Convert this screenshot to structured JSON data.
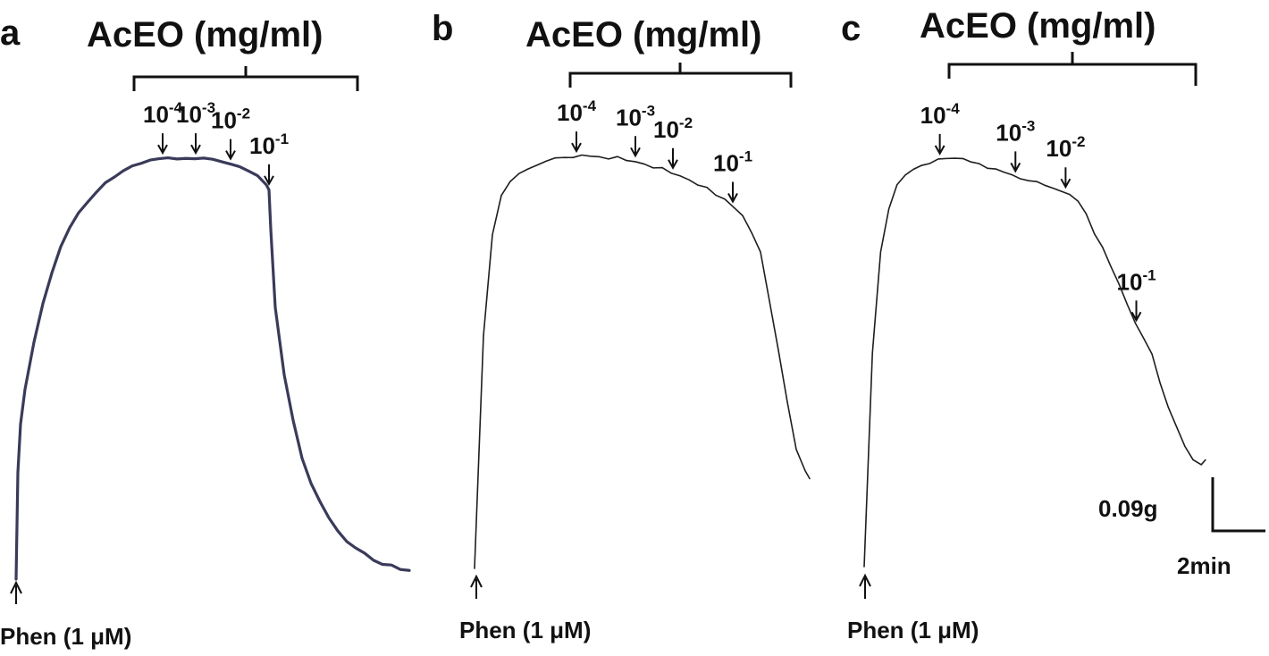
{
  "figure": {
    "scale_bar": {
      "force_label": "0.09g",
      "time_label": "2min"
    }
  },
  "chart_data": [
    {
      "type": "line",
      "panel": "a",
      "title": "AcEO (mg/ml)",
      "stimulus_label": "Phen (1 μM)",
      "concentrations": [
        {
          "base": "10",
          "exp": "-4",
          "t": 16.4
        },
        {
          "base": "10",
          "exp": "-3",
          "t": 20.1
        },
        {
          "base": "10",
          "exp": "-2",
          "t": 24.0
        },
        {
          "base": "10",
          "exp": "-1",
          "t": 28.3
        }
      ],
      "series": [
        {
          "x": [
            0,
            0.2,
            0.5,
            1,
            2,
            3,
            4,
            5,
            6,
            7,
            8,
            9,
            10,
            11,
            12,
            13,
            14,
            15,
            16,
            17,
            18,
            19,
            20,
            21,
            22,
            23,
            24,
            25,
            26,
            27,
            28,
            28.3,
            28.5,
            29,
            30,
            31,
            32,
            33,
            34,
            35,
            36,
            37,
            38,
            39,
            40,
            41,
            42,
            43,
            44
          ],
          "y": [
            0,
            0.55,
            0.8,
            0.98,
            1.22,
            1.42,
            1.58,
            1.71,
            1.81,
            1.89,
            1.95,
            2.0,
            2.04,
            2.08,
            2.11,
            2.13,
            2.15,
            2.16,
            2.17,
            2.17,
            2.17,
            2.17,
            2.17,
            2.17,
            2.16,
            2.15,
            2.14,
            2.12,
            2.1,
            2.08,
            2.04,
            2.01,
            1.8,
            1.4,
            1.05,
            0.82,
            0.63,
            0.5,
            0.4,
            0.32,
            0.25,
            0.2,
            0.16,
            0.13,
            0.1,
            0.08,
            0.07,
            0.05,
            0.04
          ]
        }
      ]
    },
    {
      "type": "line",
      "panel": "b",
      "title": "AcEO (mg/ml)",
      "stimulus_label": "Phen (1 μM)",
      "concentrations": [
        {
          "base": "10",
          "exp": "-4",
          "t": 11.4
        },
        {
          "base": "10",
          "exp": "-3",
          "t": 18.0
        },
        {
          "base": "10",
          "exp": "-2",
          "t": 22.2
        },
        {
          "base": "10",
          "exp": "-1",
          "t": 28.9
        }
      ],
      "series": [
        {
          "x": [
            0,
            0.5,
            1,
            2,
            3,
            4,
            5,
            6,
            7,
            8,
            9,
            10,
            11,
            12,
            13,
            14,
            15,
            16,
            17,
            18,
            19,
            20,
            21,
            22,
            23,
            24,
            25,
            26,
            27,
            28,
            29,
            30,
            31,
            32,
            33,
            34,
            35,
            36,
            37,
            37.5
          ],
          "y": [
            0,
            0.6,
            1.2,
            1.72,
            1.92,
            2.0,
            2.04,
            2.06,
            2.08,
            2.1,
            2.11,
            2.12,
            2.12,
            2.13,
            2.13,
            2.12,
            2.11,
            2.12,
            2.11,
            2.1,
            2.09,
            2.07,
            2.06,
            2.04,
            2.03,
            2.0,
            1.98,
            1.96,
            1.93,
            1.9,
            1.86,
            1.82,
            1.73,
            1.63,
            1.38,
            1.12,
            0.86,
            0.62,
            0.5,
            0.46
          ]
        }
      ]
    },
    {
      "type": "line",
      "panel": "c",
      "title": "AcEO (mg/ml)",
      "stimulus_label": "Phen (1 μM)",
      "concentrations": [
        {
          "base": "10",
          "exp": "-4",
          "t": 9.2
        },
        {
          "base": "10",
          "exp": "-3",
          "t": 18.4
        },
        {
          "base": "10",
          "exp": "-2",
          "t": 24.5
        },
        {
          "base": "10",
          "exp": "-1",
          "t": 33.1
        }
      ],
      "series": [
        {
          "x": [
            0,
            0.5,
            1,
            2,
            3,
            4,
            5,
            6,
            7,
            8,
            9,
            10,
            11,
            12,
            13,
            14,
            15,
            16,
            17,
            18,
            19,
            20,
            21,
            22,
            23,
            24,
            25,
            26,
            27,
            28,
            29,
            30,
            31,
            32,
            33,
            34,
            35,
            36,
            37,
            38,
            39,
            40,
            41,
            41.5
          ],
          "y": [
            0,
            0.55,
            1.1,
            1.62,
            1.85,
            1.97,
            2.02,
            2.05,
            2.07,
            2.08,
            2.1,
            2.11,
            2.11,
            2.1,
            2.09,
            2.08,
            2.06,
            2.05,
            2.04,
            2.02,
            2.0,
            1.99,
            1.98,
            1.96,
            1.95,
            1.94,
            1.92,
            1.88,
            1.82,
            1.72,
            1.64,
            1.55,
            1.45,
            1.35,
            1.25,
            1.18,
            1.1,
            0.95,
            0.82,
            0.72,
            0.62,
            0.55,
            0.52,
            0.55
          ]
        }
      ]
    }
  ]
}
